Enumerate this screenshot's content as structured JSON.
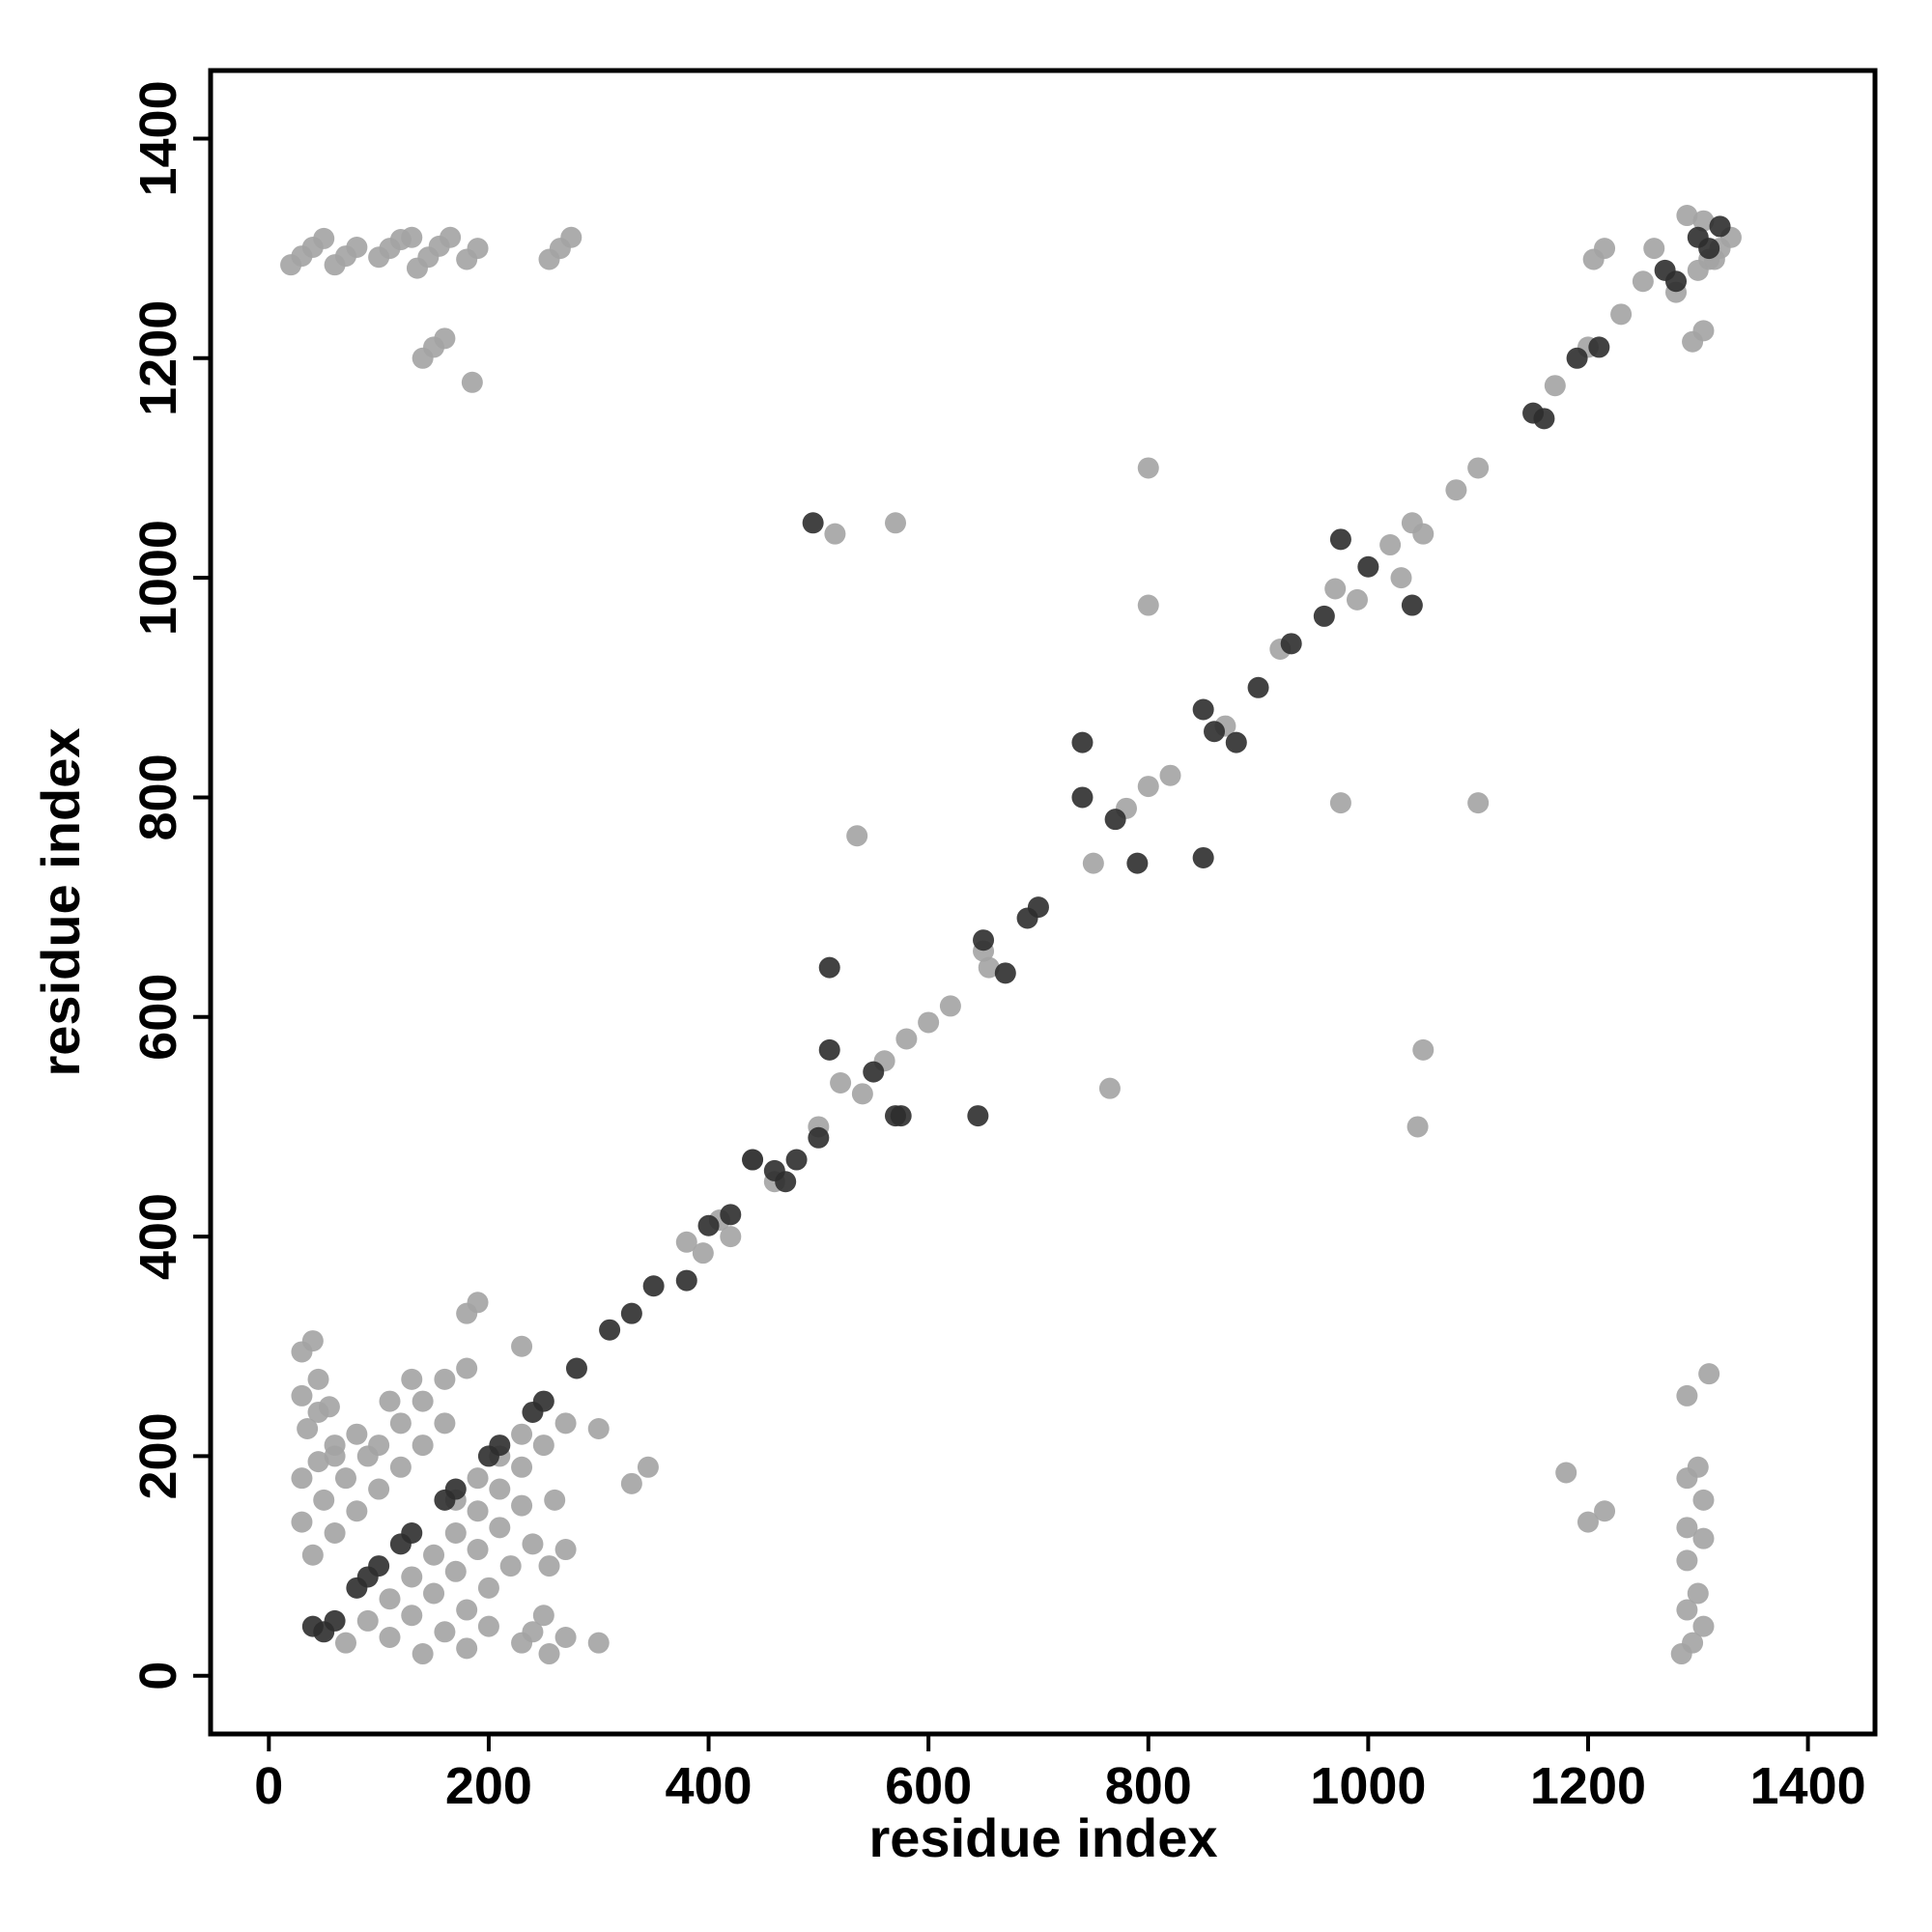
{
  "chart_data": {
    "type": "scatter",
    "xlabel": "residue index",
    "ylabel": "residue index",
    "xlim": [
      -53,
      1461
    ],
    "ylim": [
      -53,
      1462
    ],
    "xticks": [
      0,
      200,
      400,
      600,
      800,
      1000,
      1200,
      1400
    ],
    "yticks": [
      0,
      200,
      400,
      600,
      800,
      1000,
      1200,
      1400
    ],
    "grid": false,
    "series": [
      {
        "color": "#a3a3a3",
        "x": [
          20,
          30,
          40,
          50,
          60,
          70,
          80,
          100,
          110,
          120,
          130,
          135,
          145,
          155,
          165,
          180,
          190,
          255,
          265,
          275,
          140,
          150,
          160,
          185,
          30,
          40,
          30,
          45,
          55,
          35,
          45,
          30,
          50,
          70,
          90,
          30,
          45,
          60,
          40,
          60,
          80,
          100,
          120,
          140,
          160,
          70,
          90,
          110,
          130,
          150,
          170,
          190,
          210,
          230,
          250,
          270,
          110,
          130,
          150,
          170,
          190,
          210,
          230,
          260,
          140,
          160,
          180,
          200,
          220,
          240,
          180,
          200,
          230,
          240,
          250,
          255,
          270,
          300,
          255,
          270,
          100,
          120,
          140,
          160,
          180,
          110,
          130,
          60,
          80,
          170,
          190,
          210,
          230,
          180,
          190,
          230,
          300,
          330,
          345,
          420,
          440,
          460,
          380,
          395,
          410,
          520,
          540,
          560,
          580,
          600,
          620,
          500,
          650,
          655,
          750,
          780,
          800,
          820,
          870,
          920,
          970,
          990,
          1030,
          1020,
          1080,
          1170,
          1200,
          1230,
          1250,
          1260,
          1280,
          1300,
          1310,
          1320,
          1330,
          1290,
          1305,
          1315,
          800,
          800,
          975,
          1100,
          570,
          535,
          765,
          1050,
          1045,
          515,
          1100,
          1040,
          1050,
          1180,
          1200,
          1215,
          1285,
          1295,
          1305,
          1290,
          1300,
          1290,
          1305,
          1290,
          1305,
          1290,
          1300,
          1290,
          1310,
          1205,
          1215,
          1295,
          1305
        ],
        "y": [
          1285,
          1293,
          1301,
          1309,
          1285,
          1293,
          1301,
          1292,
          1300,
          1308,
          1310,
          1282,
          1292,
          1302,
          1310,
          1290,
          1300,
          1290,
          1300,
          1310,
          1200,
          1210,
          1218,
          1178,
          295,
          305,
          255,
          270,
          245,
          225,
          240,
          140,
          160,
          180,
          200,
          180,
          195,
          210,
          110,
          130,
          150,
          170,
          190,
          210,
          230,
          30,
          50,
          70,
          90,
          110,
          130,
          150,
          170,
          190,
          210,
          230,
          35,
          55,
          75,
          95,
          115,
          135,
          155,
          160,
          20,
          40,
          60,
          80,
          100,
          120,
          25,
          45,
          30,
          40,
          55,
          20,
          35,
          30,
          100,
          115,
          210,
          230,
          250,
          270,
          280,
          250,
          270,
          200,
          220,
          160,
          180,
          200,
          220,
          330,
          340,
          300,
          225,
          175,
          190,
          400,
          470,
          450,
          395,
          385,
          415,
          540,
          530,
          560,
          580,
          595,
          610,
          500,
          660,
          645,
          740,
          790,
          810,
          820,
          865,
          935,
          990,
          980,
          1000,
          1030,
          1080,
          1175,
          1210,
          1240,
          1270,
          1300,
          1260,
          1280,
          1290,
          1300,
          1310,
          1330,
          1325,
          1290,
          1100,
          975,
          795,
          795,
          1050,
          765,
          535,
          570,
          500,
          1040,
          1100,
          1050,
          1040,
          185,
          140,
          150,
          20,
          30,
          45,
          60,
          75,
          105,
          125,
          135,
          160,
          180,
          190,
          255,
          275,
          1290,
          1300,
          1215,
          1225
        ]
      },
      {
        "color": "#2e2e2e",
        "x": [
          40,
          50,
          60,
          80,
          90,
          100,
          120,
          130,
          160,
          170,
          200,
          210,
          240,
          250,
          280,
          310,
          330,
          350,
          400,
          420,
          460,
          480,
          500,
          495,
          510,
          510,
          570,
          645,
          650,
          670,
          690,
          700,
          740,
          740,
          770,
          790,
          850,
          850,
          860,
          880,
          900,
          930,
          960,
          975,
          1000,
          1040,
          1150,
          1190,
          1270,
          1300,
          1320,
          1160,
          1210,
          1280,
          1310,
          550,
          575,
          380,
          470,
          440
        ],
        "y": [
          45,
          40,
          50,
          80,
          90,
          100,
          120,
          130,
          160,
          170,
          200,
          210,
          240,
          250,
          280,
          315,
          330,
          355,
          410,
          420,
          460,
          470,
          490,
          1050,
          645,
          570,
          510,
          510,
          670,
          640,
          690,
          700,
          850,
          800,
          780,
          740,
          880,
          745,
          860,
          850,
          900,
          940,
          965,
          1035,
          1010,
          975,
          1150,
          1200,
          1280,
          1310,
          1320,
          1145,
          1210,
          1270,
          1300,
          550,
          510,
          360,
          450,
          470
        ]
      }
    ]
  }
}
